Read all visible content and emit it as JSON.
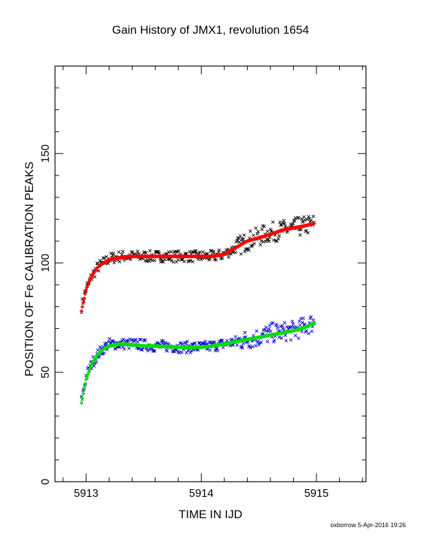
{
  "footer": "oxborrow  5-Apr-2016 19:26",
  "chart_data": {
    "type": "scatter",
    "title": "Gain History of JMX1, revolution 1654",
    "xlabel": "TIME IN IJD",
    "ylabel": "POSITION OF Fe CALIBRATION PEAKS",
    "xlim": [
      5912.73,
      5915.43
    ],
    "ylim": [
      0,
      190
    ],
    "xticks": [
      "5913",
      "5914",
      "5915"
    ],
    "yticks": [
      "0",
      "50",
      "100",
      "150"
    ],
    "grid": false,
    "colors": {
      "upper_raw": "#000000",
      "upper_fit": "#ff0000",
      "lower_raw": "#0000cc",
      "lower_fit": "#00dd00"
    },
    "series": [
      {
        "color": "#000000",
        "marker": "x",
        "x": [
          5912.96,
          5913.0,
          5913.05,
          5913.1,
          5913.15,
          5913.2,
          5913.3,
          5913.4,
          5913.5,
          5913.6,
          5913.7,
          5913.8,
          5913.9,
          5914.0,
          5914.1,
          5914.2,
          5914.3,
          5914.4,
          5914.5,
          5914.6,
          5914.7,
          5914.8,
          5914.9,
          5914.98
        ],
        "y": [
          80,
          88,
          94,
          98,
          100,
          102,
          103,
          103,
          103,
          103,
          103,
          103,
          103,
          103,
          103,
          104,
          107,
          110,
          112,
          114,
          115,
          116,
          117,
          118
        ]
      },
      {
        "color": "#ff0000",
        "marker": "+",
        "x": [
          5912.96,
          5913.0,
          5913.05,
          5913.1,
          5913.15,
          5913.2,
          5913.3,
          5913.4,
          5913.5,
          5913.6,
          5913.7,
          5913.8,
          5913.9,
          5914.0,
          5914.1,
          5914.2,
          5914.3,
          5914.4,
          5914.5,
          5914.6,
          5914.7,
          5914.8,
          5914.9,
          5914.98
        ],
        "y": [
          78,
          88,
          94,
          98,
          100,
          101.5,
          102.5,
          103,
          103,
          103,
          103,
          103,
          103,
          103,
          103,
          104,
          107,
          110,
          111.5,
          113,
          115,
          116,
          117,
          118
        ]
      },
      {
        "color": "#0000cc",
        "marker": "x",
        "x": [
          5912.96,
          5913.0,
          5913.05,
          5913.1,
          5913.15,
          5913.2,
          5913.3,
          5913.4,
          5913.5,
          5913.6,
          5913.7,
          5913.8,
          5913.9,
          5914.0,
          5914.1,
          5914.2,
          5914.3,
          5914.4,
          5914.5,
          5914.6,
          5914.7,
          5914.8,
          5914.9,
          5914.98
        ],
        "y": [
          37,
          48,
          54,
          58,
          61,
          63,
          63,
          63,
          62.5,
          62,
          62,
          61.5,
          61.5,
          61.5,
          62,
          63,
          64,
          65,
          66,
          68,
          68.5,
          69,
          71,
          73
        ]
      },
      {
        "color": "#00dd00",
        "marker": "+",
        "x": [
          5912.96,
          5913.0,
          5913.05,
          5913.1,
          5913.15,
          5913.2,
          5913.3,
          5913.4,
          5913.5,
          5913.6,
          5913.7,
          5913.8,
          5913.9,
          5914.0,
          5914.1,
          5914.2,
          5914.3,
          5914.4,
          5914.5,
          5914.6,
          5914.7,
          5914.8,
          5914.9,
          5914.98
        ],
        "y": [
          36,
          47,
          54,
          58,
          60.5,
          62,
          63,
          62.5,
          62,
          62,
          61.8,
          61.5,
          61.5,
          61.5,
          62,
          63,
          64,
          65,
          66,
          67,
          68,
          69,
          70.5,
          72.5
        ]
      }
    ]
  }
}
